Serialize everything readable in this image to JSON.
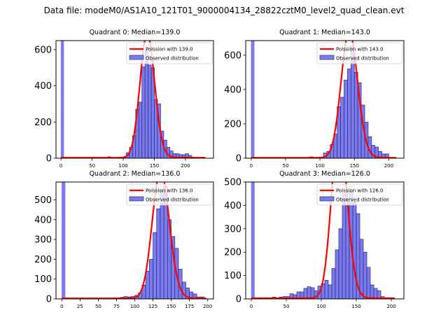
{
  "suptitle": "Data file: modeM0/AS1A10_121T01_9000004134_28822cztM0_level2_quad_clean.evt",
  "colors": {
    "bar_fill": "#7b7bf0",
    "bar_edge": "#2a2a70",
    "poisson_line": "#ff0000"
  },
  "chart_data": [
    {
      "type": "bar",
      "title": "Quadrant 0: Median=139.0",
      "legend": [
        "Poission with 139.0",
        "Observed distribution"
      ],
      "legend_position": "top-right",
      "median": 139.0,
      "bin_width": 5,
      "xlim": [
        -8,
        245
      ],
      "ylim": [
        0,
        650
      ],
      "xticks": [
        0,
        50,
        100,
        150,
        200
      ],
      "yticks": [
        0,
        200,
        400,
        600
      ],
      "zero_bin": 650,
      "bins_start": [
        75,
        80,
        85,
        90,
        95,
        100,
        105,
        110,
        115,
        120,
        125,
        130,
        135,
        140,
        145,
        150,
        155,
        160,
        165,
        170,
        175,
        180,
        185,
        190,
        195,
        200,
        205,
        210,
        215,
        220,
        225
      ],
      "values": [
        8,
        2,
        2,
        2,
        2,
        5,
        30,
        60,
        125,
        270,
        310,
        505,
        595,
        515,
        500,
        325,
        300,
        150,
        100,
        60,
        40,
        25,
        25,
        20,
        20,
        25,
        15,
        5,
        3,
        2,
        2
      ],
      "poisson_range": [
        0,
        232
      ]
    },
    {
      "type": "bar",
      "title": "Quadrant 1: Median=143.0",
      "legend": [
        "Poission with 143.0",
        "Observed distribution"
      ],
      "legend_position": "top-right",
      "median": 143.0,
      "bin_width": 5,
      "xlim": [
        -8,
        222
      ],
      "ylim": [
        0,
        685
      ],
      "xticks": [
        0,
        50,
        100,
        150,
        200
      ],
      "yticks": [
        0,
        200,
        400,
        600
      ],
      "zero_bin": 685,
      "bins_start": [
        70,
        75,
        85,
        90,
        95,
        100,
        105,
        110,
        115,
        120,
        125,
        130,
        135,
        140,
        145,
        150,
        155,
        160,
        165,
        170,
        175,
        180,
        185,
        190,
        195,
        200,
        205
      ],
      "values": [
        4,
        4,
        8,
        2,
        4,
        5,
        30,
        40,
        80,
        140,
        300,
        355,
        455,
        520,
        650,
        500,
        440,
        310,
        210,
        125,
        75,
        65,
        40,
        25,
        25,
        5,
        3
      ],
      "poisson_range": [
        0,
        211
      ]
    },
    {
      "type": "bar",
      "title": "Quadrant 2: Median=136.0",
      "legend": [
        "Poission with 136.0",
        "Observed distribution"
      ],
      "legend_position": "top-right",
      "median": 136.0,
      "bin_width": 5,
      "xlim": [
        -8,
        208
      ],
      "ylim": [
        0,
        590
      ],
      "xticks": [
        0,
        25,
        50,
        75,
        100,
        125,
        150,
        175,
        200
      ],
      "yticks": [
        0,
        100,
        200,
        300,
        400,
        500
      ],
      "zero_bin": 590,
      "bins_start": [
        35,
        45,
        50,
        60,
        70,
        75,
        80,
        85,
        90,
        95,
        100,
        105,
        110,
        115,
        120,
        125,
        130,
        135,
        140,
        145,
        150,
        155,
        160,
        165,
        170,
        175,
        180,
        185,
        190
      ],
      "values": [
        2,
        2,
        3,
        2,
        5,
        5,
        8,
        12,
        10,
        12,
        18,
        30,
        70,
        140,
        200,
        335,
        455,
        545,
        570,
        400,
        315,
        255,
        150,
        85,
        55,
        35,
        25,
        10,
        10
      ],
      "poisson_range": [
        0,
        198
      ]
    },
    {
      "type": "bar",
      "title": "Quadrant 3: Median=126.0",
      "legend": [
        "Poission with 126.0",
        "Observed distribution"
      ],
      "legend_position": "top-right",
      "median": 126.0,
      "bin_width": 5,
      "xlim": [
        -8,
        218
      ],
      "ylim": [
        0,
        500
      ],
      "xticks": [
        0,
        50,
        100,
        150,
        200
      ],
      "yticks": [
        0,
        100,
        200,
        300,
        400,
        500
      ],
      "zero_bin": 500,
      "bins_start": [
        25,
        30,
        35,
        40,
        45,
        50,
        55,
        60,
        65,
        70,
        75,
        80,
        85,
        90,
        95,
        100,
        105,
        110,
        115,
        120,
        125,
        130,
        135,
        140,
        145,
        150,
        155,
        160,
        165,
        170,
        175,
        180,
        185
      ],
      "values": [
        3,
        8,
        5,
        8,
        10,
        10,
        22,
        18,
        30,
        30,
        45,
        52,
        48,
        35,
        55,
        65,
        80,
        60,
        130,
        210,
        300,
        450,
        400,
        460,
        415,
        365,
        255,
        200,
        135,
        60,
        45,
        35,
        10
      ],
      "poisson_range": [
        0,
        205
      ]
    }
  ]
}
